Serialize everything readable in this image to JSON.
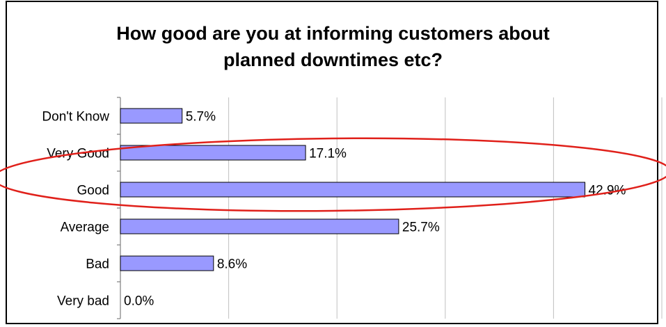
{
  "chart_data": {
    "type": "bar",
    "orientation": "horizontal",
    "title": "How good are you at informing customers about planned downtimes etc?",
    "title_lines": [
      "How good are you at informing customers about",
      "planned downtimes etc?"
    ],
    "categories": [
      "Don't Know",
      "Very Good",
      "Good",
      "Average",
      "Bad",
      "Very bad"
    ],
    "values": [
      5.7,
      17.1,
      42.9,
      25.7,
      8.6,
      0.0
    ],
    "value_labels": [
      "5.7%",
      "17.1%",
      "42.9%",
      "25.7%",
      "8.6%",
      "0.0%"
    ],
    "xlim": [
      0,
      50
    ],
    "x_gridlines": [
      0,
      10,
      20,
      30,
      40,
      50
    ],
    "grid": true,
    "legend": "none",
    "xlabel": "",
    "ylabel": "",
    "annotation": {
      "type": "ellipse",
      "encloses_categories": [
        "Very Good",
        "Good"
      ],
      "color": "#e0201a"
    },
    "colors": {
      "bar_fill": "#9999ff",
      "bar_stroke": "#000000",
      "gridline": "#c0c0c0",
      "annotation": "#e0201a"
    }
  }
}
